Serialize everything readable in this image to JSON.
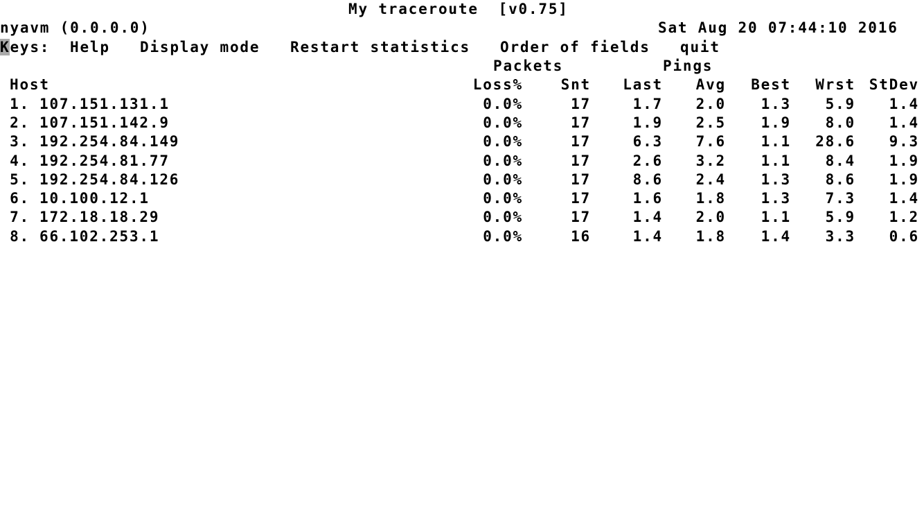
{
  "title": "My traceroute  [v0.75]",
  "statusbar": {
    "host": "nyavm (0.0.0.0)",
    "datetime": "Sat Aug 20 07:44:10 2016"
  },
  "menu": {
    "cursor_char": "K",
    "label_rest": "eys:",
    "items": [
      {
        "label": "Help"
      },
      {
        "label": "Display mode"
      },
      {
        "label": "Restart statistics"
      },
      {
        "label": "Order of fields"
      },
      {
        "label": "quit"
      }
    ]
  },
  "table": {
    "group_packets": "Packets",
    "group_pings": "Pings",
    "host_header": "Host",
    "columns": [
      "Loss%",
      "Snt",
      "Last",
      "Avg",
      "Best",
      "Wrst",
      "StDev"
    ],
    "rows": [
      {
        "hop": "1.",
        "host": "107.151.131.1",
        "loss": "0.0%",
        "snt": "17",
        "last": "1.7",
        "avg": "2.0",
        "best": "1.3",
        "wrst": "5.9",
        "stdev": "1.4"
      },
      {
        "hop": "2.",
        "host": "107.151.142.9",
        "loss": "0.0%",
        "snt": "17",
        "last": "1.9",
        "avg": "2.5",
        "best": "1.9",
        "wrst": "8.0",
        "stdev": "1.4"
      },
      {
        "hop": "3.",
        "host": "192.254.84.149",
        "loss": "0.0%",
        "snt": "17",
        "last": "6.3",
        "avg": "7.6",
        "best": "1.1",
        "wrst": "28.6",
        "stdev": "9.3"
      },
      {
        "hop": "4.",
        "host": "192.254.81.77",
        "loss": "0.0%",
        "snt": "17",
        "last": "2.6",
        "avg": "3.2",
        "best": "1.1",
        "wrst": "8.4",
        "stdev": "1.9"
      },
      {
        "hop": "5.",
        "host": "192.254.84.126",
        "loss": "0.0%",
        "snt": "17",
        "last": "8.6",
        "avg": "2.4",
        "best": "1.3",
        "wrst": "8.6",
        "stdev": "1.9"
      },
      {
        "hop": "6.",
        "host": "10.100.12.1",
        "loss": "0.0%",
        "snt": "17",
        "last": "1.6",
        "avg": "1.8",
        "best": "1.3",
        "wrst": "7.3",
        "stdev": "1.4"
      },
      {
        "hop": "7.",
        "host": "172.18.18.29",
        "loss": "0.0%",
        "snt": "17",
        "last": "1.4",
        "avg": "2.0",
        "best": "1.1",
        "wrst": "5.9",
        "stdev": "1.2"
      },
      {
        "hop": "8.",
        "host": "66.102.253.1",
        "loss": "0.0%",
        "snt": "16",
        "last": "1.4",
        "avg": "1.8",
        "best": "1.4",
        "wrst": "3.3",
        "stdev": "0.6"
      }
    ]
  },
  "colors": {
    "text": "#000000",
    "background": "#ffffff",
    "cursor_bg": "#ababab"
  }
}
